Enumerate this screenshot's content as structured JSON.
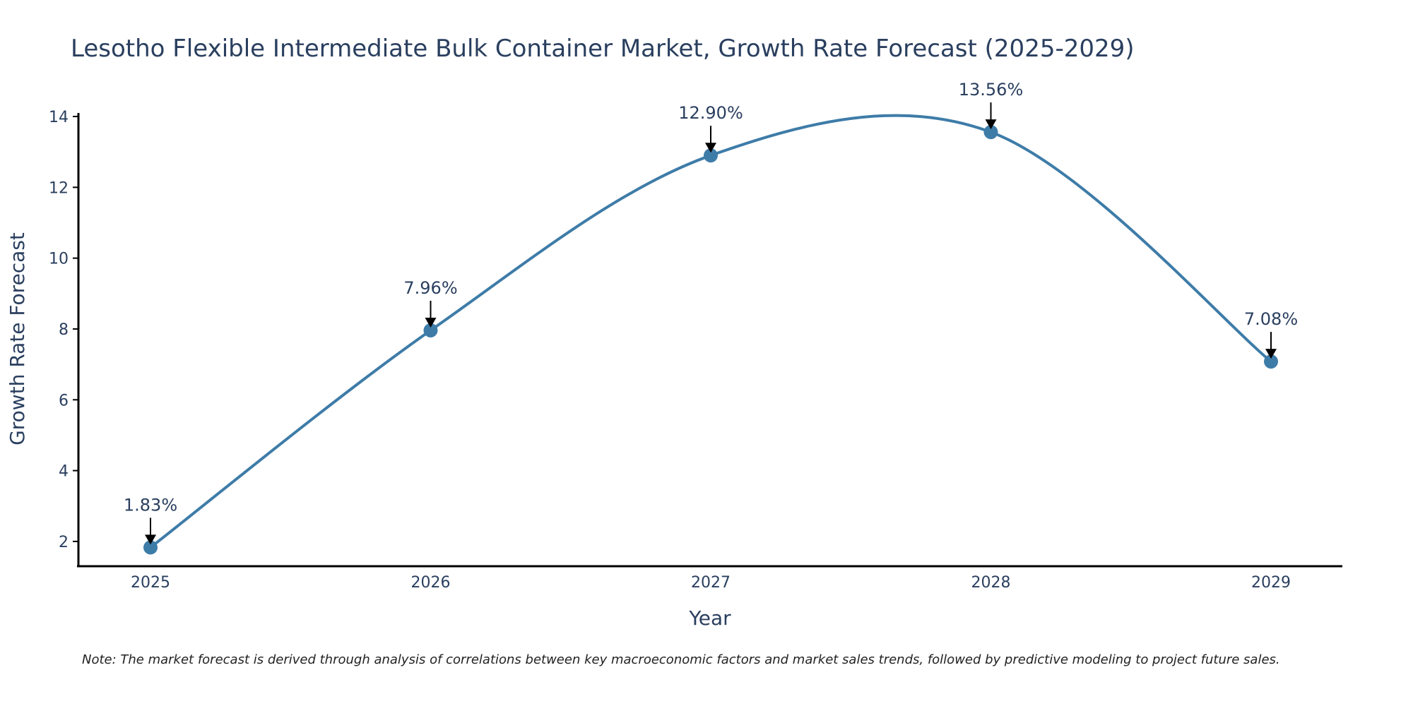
{
  "chart_data": {
    "type": "line",
    "title": "Lesotho Flexible Intermediate Bulk Container Market, Growth Rate Forecast (2025-2029)",
    "xlabel": "Year",
    "ylabel": "Growth Rate Forecast",
    "categories": [
      "2025",
      "2026",
      "2027",
      "2028",
      "2029"
    ],
    "values": [
      1.83,
      7.96,
      12.9,
      13.56,
      7.08
    ],
    "data_labels": [
      "1.83%",
      "7.96%",
      "12.90%",
      "13.56%",
      "7.08%"
    ],
    "yticks": [
      2,
      4,
      6,
      8,
      10,
      12,
      14
    ],
    "ylim": [
      1.3,
      14.1
    ],
    "grid": false,
    "line_color": "#3e7ca8",
    "marker_color": "#3e7ca8",
    "note": "Note: The market forecast is derived through analysis of correlations between key macroeconomic factors and market sales trends, followed by predictive modeling to project future sales."
  }
}
